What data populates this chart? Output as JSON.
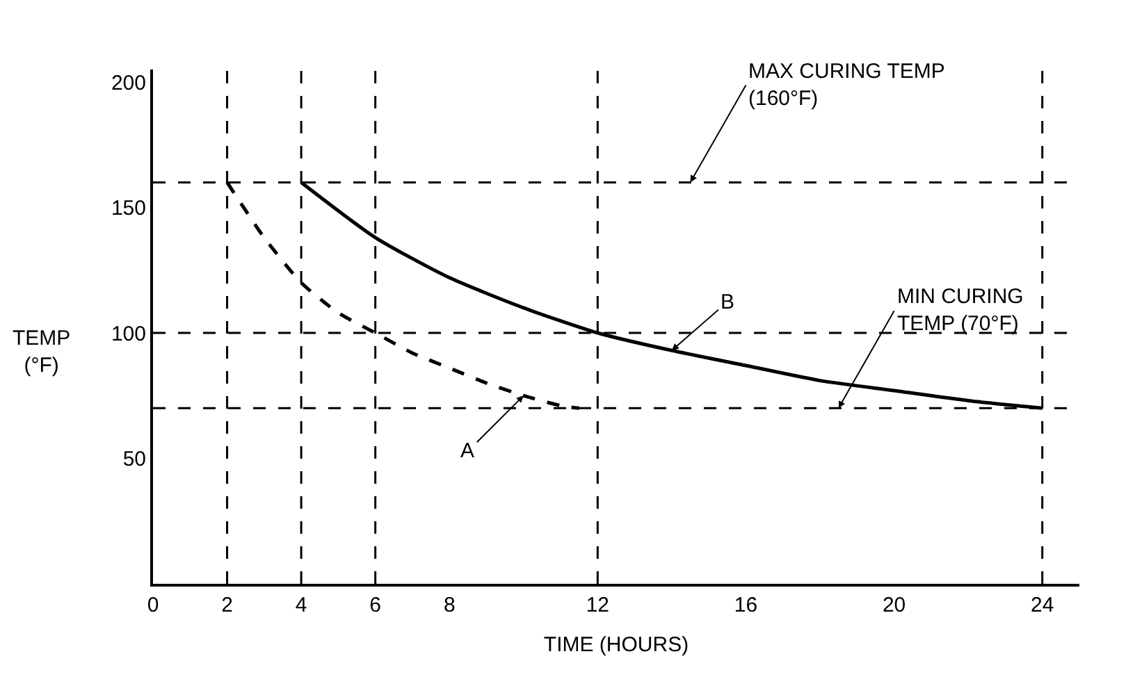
{
  "chart_data": {
    "type": "line",
    "xlabel": "TIME (HOURS)",
    "ylabel": "TEMP\n(°F)",
    "xlim": [
      0,
      25
    ],
    "ylim": [
      0,
      205
    ],
    "xticks": [
      0,
      2,
      4,
      6,
      8,
      12,
      16,
      20,
      24
    ],
    "yticks": [
      50,
      100,
      150,
      200
    ],
    "series": [
      {
        "name": "A",
        "color": "#000000",
        "line_style": "dashed",
        "x": [
          2,
          3,
          4,
          5,
          6,
          7,
          8,
          9,
          10,
          11,
          11.5
        ],
        "values": [
          160,
          138,
          120,
          108,
          100,
          92,
          86,
          80,
          75,
          71,
          70
        ]
      },
      {
        "name": "B",
        "color": "#000000",
        "line_style": "solid",
        "x": [
          4,
          6,
          8,
          10,
          12,
          14,
          16,
          18,
          20,
          22,
          24
        ],
        "values": [
          160,
          138,
          122,
          110,
          100,
          93,
          87,
          81,
          77,
          73,
          70
        ]
      }
    ],
    "ref_lines": [
      {
        "axis": "y",
        "value": 160,
        "label": "MAX CURING TEMP\n(160°F)",
        "line_style": "dashed",
        "color": "#000000"
      },
      {
        "axis": "y",
        "value": 100,
        "line_style": "dashed",
        "color": "#000000"
      },
      {
        "axis": "y",
        "value": 70,
        "label": "MIN CURING\nTEMP (70°F)",
        "line_style": "dashed",
        "color": "#000000"
      },
      {
        "axis": "x",
        "value": 2,
        "line_style": "dashed",
        "color": "#000000"
      },
      {
        "axis": "x",
        "value": 4,
        "line_style": "dashed",
        "color": "#000000"
      },
      {
        "axis": "x",
        "value": 6,
        "line_style": "dashed",
        "color": "#000000"
      },
      {
        "axis": "x",
        "value": 12,
        "line_style": "dashed",
        "color": "#000000"
      },
      {
        "axis": "x",
        "value": 24,
        "line_style": "dashed",
        "color": "#000000"
      }
    ],
    "legend": false,
    "marker": "none"
  }
}
